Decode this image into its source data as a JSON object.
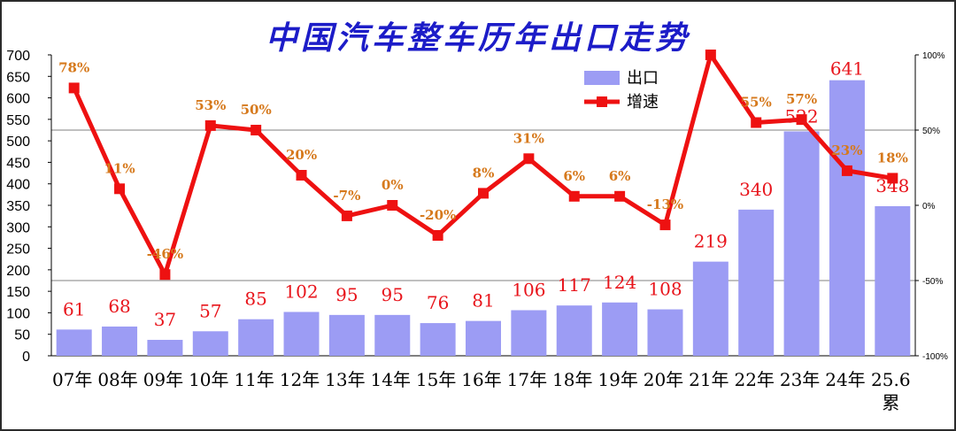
{
  "chart_data": {
    "type": "bar",
    "title": "中国汽车整车历年出口走势",
    "categories": [
      "07年",
      "08年",
      "09年",
      "10年",
      "11年",
      "12年",
      "13年",
      "14年",
      "15年",
      "16年",
      "17年",
      "18年",
      "19年",
      "20年",
      "21年",
      "22年",
      "23年",
      "24年",
      "25.6累"
    ],
    "category_lines": [
      [
        "07年"
      ],
      [
        "08年"
      ],
      [
        "09年"
      ],
      [
        "10年"
      ],
      [
        "11年"
      ],
      [
        "12年"
      ],
      [
        "13年"
      ],
      [
        "14年"
      ],
      [
        "15年"
      ],
      [
        "16年"
      ],
      [
        "17年"
      ],
      [
        "18年"
      ],
      [
        "19年"
      ],
      [
        "20年"
      ],
      [
        "21年"
      ],
      [
        "22年"
      ],
      [
        "23年"
      ],
      [
        "24年"
      ],
      [
        "25.6",
        "累"
      ]
    ],
    "series": [
      {
        "name": "出口",
        "type": "bar",
        "color": "#9c9cf4",
        "values": [
          61,
          68,
          37,
          57,
          85,
          102,
          95,
          95,
          76,
          81,
          106,
          117,
          124,
          108,
          219,
          340,
          522,
          641,
          348
        ],
        "labels": [
          "61",
          "68",
          "37",
          "57",
          "85",
          "102",
          "95",
          "95",
          "76",
          "81",
          "106",
          "117",
          "124",
          "108",
          "219",
          "340",
          "522",
          "641",
          "348"
        ]
      },
      {
        "name": "增速",
        "type": "line",
        "axis": "right",
        "color": "#ee1111",
        "values": [
          78,
          11,
          -46,
          53,
          50,
          20,
          -7,
          0,
          -20,
          8,
          31,
          6,
          6,
          -13,
          100,
          55,
          57,
          23,
          18
        ],
        "labels": [
          "78%",
          "11%",
          "-46%",
          "53%",
          "50%",
          "20%",
          "-7%",
          "0%",
          "-20%",
          "8%",
          "31%",
          "6%",
          "6%",
          "-13%",
          "",
          "55%",
          "57%",
          "23%",
          "18%"
        ]
      }
    ],
    "y_left": {
      "min": 0,
      "max": 700,
      "step": 50,
      "ticks": [
        "0",
        "50",
        "100",
        "150",
        "200",
        "250",
        "300",
        "350",
        "400",
        "450",
        "500",
        "550",
        "600",
        "650",
        "700"
      ]
    },
    "y_right": {
      "min": -100,
      "max": 100,
      "ticks": [
        "-100%",
        "-50%",
        "0%",
        "50%",
        "100%"
      ]
    },
    "gridlines_at_right": [
      -50,
      50
    ],
    "legend": {
      "position": "top-right",
      "items": [
        "出口",
        "增速"
      ]
    }
  }
}
